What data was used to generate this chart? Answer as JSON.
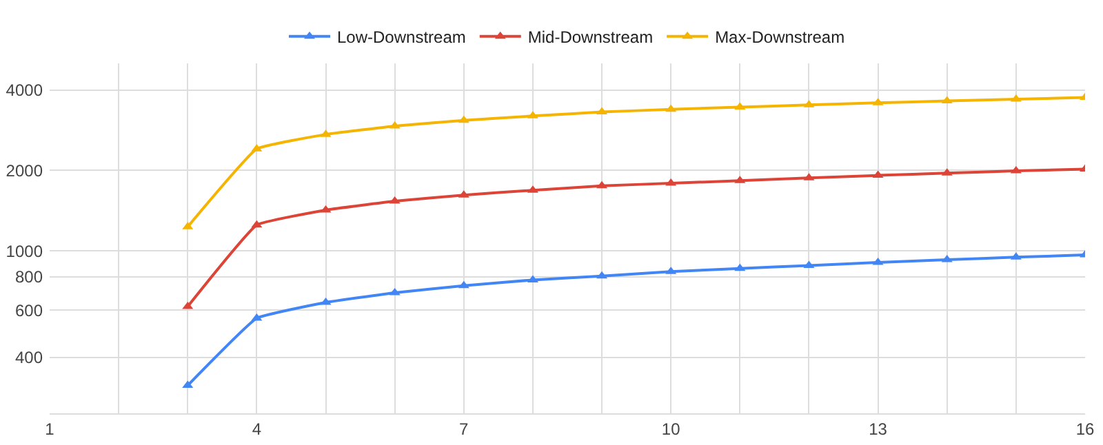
{
  "chart_data": {
    "type": "line",
    "x": [
      3,
      4,
      5,
      6,
      7,
      8,
      9,
      10,
      11,
      12,
      13,
      14,
      15,
      16
    ],
    "series": [
      {
        "name": "Low-Downstream",
        "color": "#4285f4",
        "values": [
          314,
          560,
          642,
          698,
          741,
          779,
          806,
          837,
          860,
          882,
          906,
          927,
          948,
          966
        ]
      },
      {
        "name": "Mid-Downstream",
        "color": "#db4437",
        "values": [
          620,
          1250,
          1422,
          1535,
          1618,
          1687,
          1752,
          1791,
          1832,
          1875,
          1917,
          1955,
          1993,
          2023
        ]
      },
      {
        "name": "Max-Downstream",
        "color": "#f4b400",
        "values": [
          1231,
          2407,
          2728,
          2932,
          3080,
          3198,
          3309,
          3385,
          3451,
          3516,
          3582,
          3638,
          3693,
          3749
        ]
      }
    ],
    "log": true,
    "xlim": [
      1,
      16
    ],
    "xticks": [
      1,
      {
        "value": 2,
        "label": null
      },
      {
        "value": 3,
        "label": null
      },
      4,
      {
        "value": 5,
        "label": null
      },
      {
        "value": 6,
        "label": null
      },
      7,
      {
        "value": 8,
        "label": null
      },
      {
        "value": 9,
        "label": null
      },
      10,
      {
        "value": 11,
        "label": null
      },
      {
        "value": 12,
        "label": null
      },
      13,
      {
        "value": 14,
        "label": null
      },
      {
        "value": 15,
        "label": null
      },
      16
    ],
    "ylim": [
      247,
      5030
    ],
    "yticks": [
      400,
      600,
      800,
      1000,
      2000,
      4000
    ],
    "grid": true,
    "legend": "top",
    "marker": "triangle",
    "line_style": "solid"
  }
}
